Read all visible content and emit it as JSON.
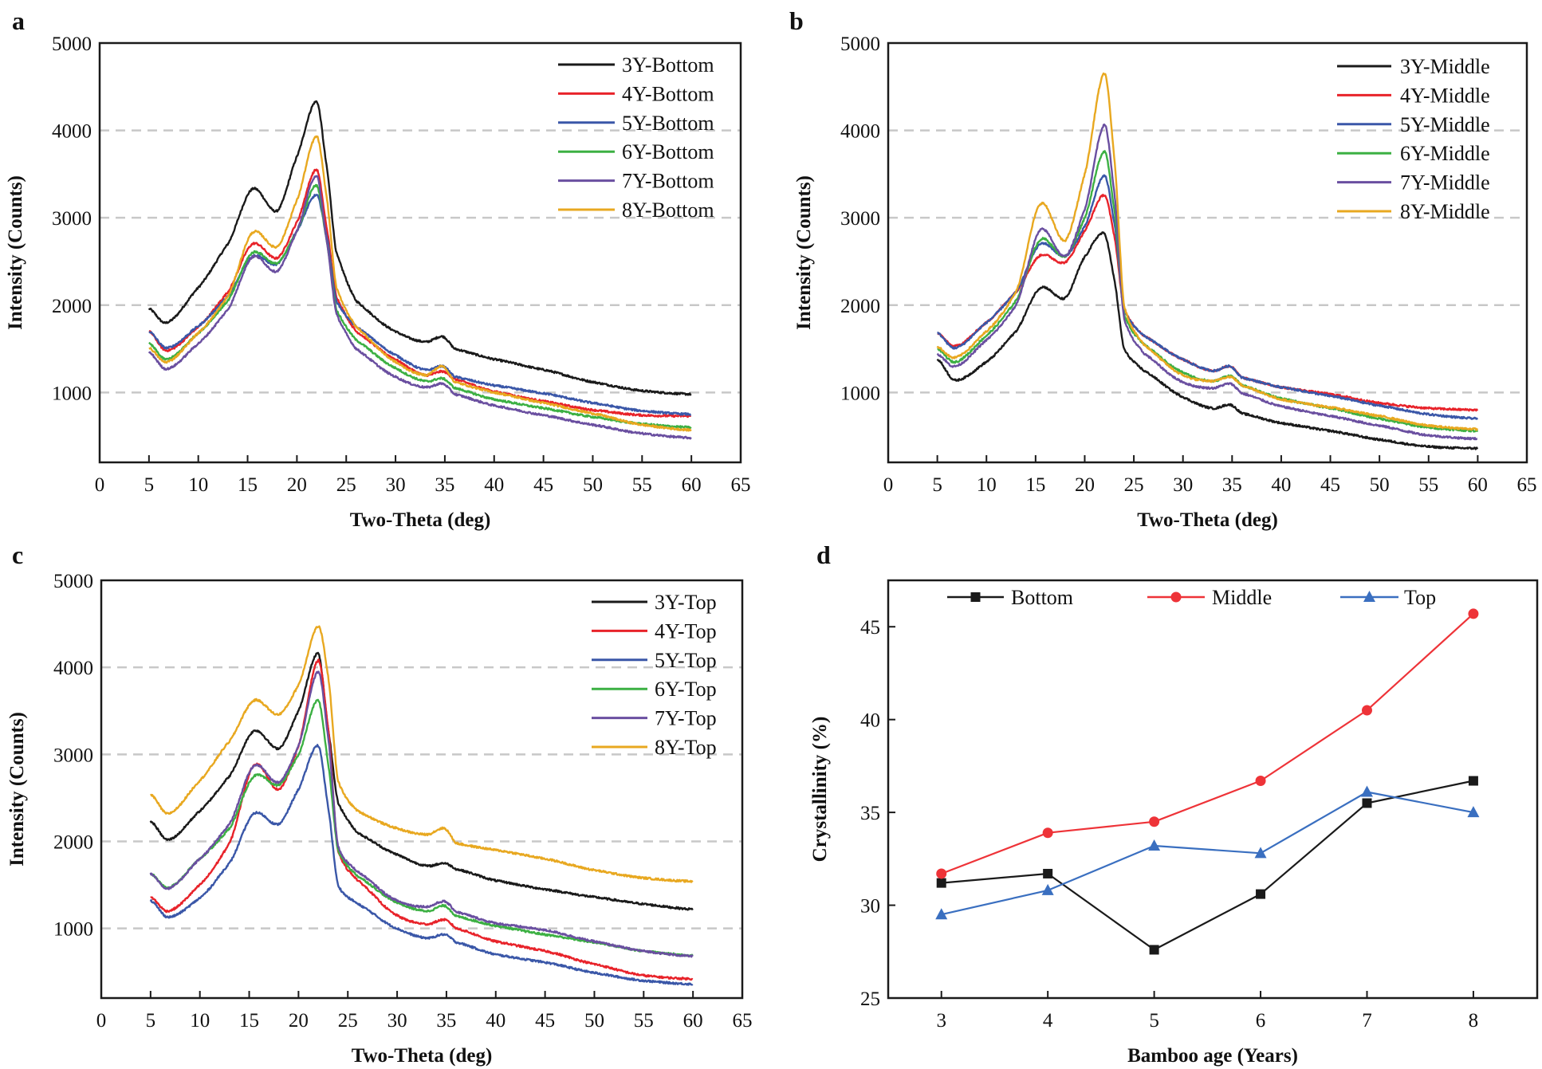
{
  "chart_data": [
    {
      "panel": "a",
      "type": "line",
      "xlabel": "Two-Theta (deg)",
      "ylabel": "Intensity (Counts)",
      "xlim": [
        0,
        65
      ],
      "ylim": [
        200,
        5000
      ],
      "xticks": [
        0,
        5,
        10,
        15,
        20,
        25,
        30,
        35,
        40,
        45,
        50,
        55,
        60,
        65
      ],
      "yticks": [
        1000,
        2000,
        3000,
        4000,
        5000
      ],
      "grid": "horizontal dashed",
      "legend_position": "top-right",
      "x": [
        5,
        6.8,
        10,
        13,
        15.5,
        18,
        20,
        22,
        23,
        24,
        26,
        30,
        33,
        34.8,
        36,
        40,
        45,
        50,
        55,
        60
      ],
      "series": [
        {
          "name": "3Y-Bottom",
          "color": "#1a1a1a",
          "values": [
            1960,
            1800,
            2200,
            2700,
            3330,
            3080,
            3700,
            4330,
            3600,
            2600,
            2050,
            1700,
            1580,
            1640,
            1500,
            1380,
            1260,
            1120,
            1020,
            980
          ]
        },
        {
          "name": "4Y-Bottom",
          "color": "#e8232a",
          "values": [
            1700,
            1480,
            1750,
            2150,
            2700,
            2540,
            2950,
            3550,
            2900,
            2100,
            1700,
            1380,
            1200,
            1240,
            1150,
            1010,
            900,
            800,
            740,
            730
          ]
        },
        {
          "name": "5Y-Bottom",
          "color": "#3a57a8",
          "values": [
            1700,
            1510,
            1760,
            2100,
            2560,
            2470,
            2850,
            3260,
            2800,
            2050,
            1750,
            1430,
            1260,
            1300,
            1180,
            1080,
            990,
            880,
            790,
            750
          ]
        },
        {
          "name": "6Y-Bottom",
          "color": "#3cb043",
          "values": [
            1560,
            1380,
            1680,
            2050,
            2600,
            2480,
            2850,
            3370,
            2750,
            1950,
            1600,
            1280,
            1130,
            1160,
            1050,
            920,
            820,
            720,
            640,
            600
          ]
        },
        {
          "name": "7Y-Bottom",
          "color": "#6a4fa0",
          "values": [
            1460,
            1270,
            1560,
            1950,
            2550,
            2390,
            2850,
            3480,
            2750,
            1900,
            1500,
            1180,
            1060,
            1100,
            980,
            850,
            740,
            630,
            530,
            480
          ]
        },
        {
          "name": "8Y-Bottom",
          "color": "#e8a820",
          "values": [
            1510,
            1350,
            1680,
            2100,
            2830,
            2670,
            3200,
            3930,
            3250,
            2200,
            1750,
            1350,
            1200,
            1300,
            1120,
            1000,
            880,
            760,
            630,
            570
          ]
        }
      ]
    },
    {
      "panel": "b",
      "type": "line",
      "xlabel": "Two-Theta (deg)",
      "ylabel": "Intensity (Counts)",
      "xlim": [
        0,
        65
      ],
      "ylim": [
        200,
        5000
      ],
      "xticks": [
        0,
        5,
        10,
        15,
        20,
        25,
        30,
        35,
        40,
        45,
        50,
        55,
        60,
        65
      ],
      "yticks": [
        1000,
        2000,
        3000,
        4000,
        5000
      ],
      "grid": "horizontal dashed",
      "legend_position": "top-right",
      "x": [
        5,
        6.8,
        10,
        13,
        15.5,
        18,
        20,
        22,
        23,
        24,
        26,
        30,
        33,
        34.8,
        36,
        40,
        45,
        50,
        55,
        60
      ],
      "series": [
        {
          "name": "3Y-Middle",
          "color": "#1a1a1a",
          "values": [
            1380,
            1140,
            1350,
            1700,
            2200,
            2080,
            2550,
            2820,
            2300,
            1500,
            1250,
            950,
            820,
            860,
            760,
            650,
            560,
            460,
            380,
            360
          ]
        },
        {
          "name": "4Y-Middle",
          "color": "#e8232a",
          "values": [
            1680,
            1530,
            1800,
            2150,
            2570,
            2490,
            2850,
            3260,
            2800,
            1950,
            1650,
            1380,
            1250,
            1300,
            1170,
            1060,
            980,
            880,
            820,
            800
          ]
        },
        {
          "name": "5Y-Middle",
          "color": "#3a57a8",
          "values": [
            1680,
            1510,
            1800,
            2150,
            2700,
            2560,
            2900,
            3480,
            2950,
            1950,
            1650,
            1380,
            1250,
            1300,
            1170,
            1060,
            960,
            850,
            750,
            700
          ]
        },
        {
          "name": "6Y-Middle",
          "color": "#3cb043",
          "values": [
            1500,
            1350,
            1650,
            2050,
            2750,
            2560,
            3000,
            3760,
            3100,
            1900,
            1550,
            1230,
            1130,
            1190,
            1080,
            930,
            820,
            700,
            600,
            560
          ]
        },
        {
          "name": "7Y-Middle",
          "color": "#6a4fa0",
          "values": [
            1440,
            1300,
            1600,
            2000,
            2860,
            2560,
            3100,
            4060,
            3300,
            1850,
            1450,
            1120,
            1050,
            1100,
            990,
            840,
            730,
            620,
            510,
            470
          ]
        },
        {
          "name": "8Y-Middle",
          "color": "#e8a820",
          "values": [
            1520,
            1400,
            1700,
            2150,
            3160,
            2740,
            3500,
            4650,
            3700,
            2000,
            1550,
            1200,
            1130,
            1180,
            1080,
            920,
            830,
            730,
            620,
            580
          ]
        }
      ]
    },
    {
      "panel": "c",
      "type": "line",
      "xlabel": "Two-Theta (deg)",
      "ylabel": "Intensity (Counts)",
      "xlim": [
        0,
        65
      ],
      "ylim": [
        200,
        5000
      ],
      "xticks": [
        0,
        5,
        10,
        15,
        20,
        25,
        30,
        35,
        40,
        45,
        50,
        55,
        60,
        65
      ],
      "yticks": [
        1000,
        2000,
        3000,
        4000,
        5000
      ],
      "grid": "horizontal dashed",
      "legend_position": "top-right",
      "x": [
        5,
        6.8,
        10,
        13,
        15.5,
        18,
        20,
        22,
        23,
        24,
        26,
        30,
        33,
        34.8,
        36,
        40,
        45,
        50,
        55,
        60
      ],
      "series": [
        {
          "name": "3Y-Top",
          "color": "#1a1a1a",
          "values": [
            2230,
            2020,
            2350,
            2750,
            3270,
            3070,
            3500,
            4160,
            3300,
            2450,
            2100,
            1850,
            1720,
            1750,
            1680,
            1550,
            1450,
            1360,
            1280,
            1220
          ]
        },
        {
          "name": "4Y-Top",
          "color": "#e8232a",
          "values": [
            1360,
            1200,
            1500,
            1980,
            2880,
            2600,
            3100,
            4080,
            3300,
            1900,
            1550,
            1150,
            1050,
            1100,
            1000,
            850,
            740,
            590,
            460,
            420
          ]
        },
        {
          "name": "5Y-Top",
          "color": "#3a57a8",
          "values": [
            1320,
            1130,
            1350,
            1750,
            2320,
            2200,
            2600,
            3100,
            2400,
            1500,
            1280,
            1000,
            890,
            930,
            840,
            700,
            610,
            490,
            400,
            360
          ]
        },
        {
          "name": "6Y-Top",
          "color": "#3cb043",
          "values": [
            1630,
            1470,
            1800,
            2150,
            2750,
            2650,
            3000,
            3620,
            2900,
            1900,
            1600,
            1300,
            1200,
            1260,
            1140,
            1030,
            930,
            840,
            740,
            690
          ]
        },
        {
          "name": "7Y-Top",
          "color": "#6a4fa0",
          "values": [
            1630,
            1460,
            1800,
            2200,
            2870,
            2680,
            3100,
            3950,
            3200,
            1950,
            1650,
            1320,
            1250,
            1310,
            1190,
            1060,
            980,
            850,
            740,
            680
          ]
        },
        {
          "name": "8Y-Top",
          "color": "#e8a820",
          "values": [
            2540,
            2320,
            2700,
            3150,
            3620,
            3460,
            3800,
            4470,
            3900,
            2700,
            2350,
            2150,
            2080,
            2150,
            1980,
            1900,
            1800,
            1670,
            1580,
            1540
          ]
        }
      ]
    },
    {
      "panel": "d",
      "type": "line",
      "xlabel": "Bamboo age (Years)",
      "ylabel": "Crystallinity (%)",
      "xlim": [
        2.5,
        8.6
      ],
      "ylim": [
        25,
        47.5
      ],
      "xticks": [
        3,
        4,
        5,
        6,
        7,
        8
      ],
      "yticks": [
        25,
        30,
        35,
        40,
        45
      ],
      "grid": "none",
      "legend_position": "top",
      "x": [
        3,
        4,
        5,
        6,
        7,
        8
      ],
      "series": [
        {
          "name": "Bottom",
          "color": "#1a1a1a",
          "marker": "square",
          "values": [
            31.2,
            31.7,
            27.6,
            30.6,
            35.5,
            36.7
          ]
        },
        {
          "name": "Middle",
          "color": "#ee3338",
          "marker": "circle",
          "values": [
            31.7,
            33.9,
            34.5,
            36.7,
            40.5,
            45.7
          ]
        },
        {
          "name": "Top",
          "color": "#3a6fc0",
          "marker": "triangle",
          "values": [
            29.5,
            30.8,
            33.2,
            32.8,
            36.1,
            35.0
          ]
        }
      ]
    }
  ]
}
